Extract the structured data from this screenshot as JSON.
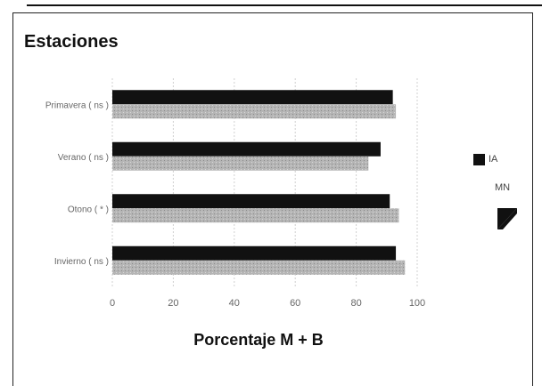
{
  "chart_data": {
    "type": "bar",
    "orientation": "horizontal",
    "title": "Estaciones",
    "xlabel": "Porcentaje M + B",
    "ylabel": "",
    "xlim": [
      0,
      100
    ],
    "x_ticks": [
      "0",
      "20",
      "40",
      "60",
      "80",
      "100"
    ],
    "categories": [
      "Primavera ( ns )",
      "Verano ( ns )",
      "Otono ( * )",
      "Invierno ( ns )"
    ],
    "series": [
      {
        "name": "IA",
        "color": "#111111",
        "values": [
          92,
          88,
          91,
          93
        ]
      },
      {
        "name": "MN",
        "color": "#b8b8b8",
        "values": [
          93,
          84,
          94,
          96
        ]
      }
    ],
    "grid": true,
    "legend_position": "right"
  }
}
